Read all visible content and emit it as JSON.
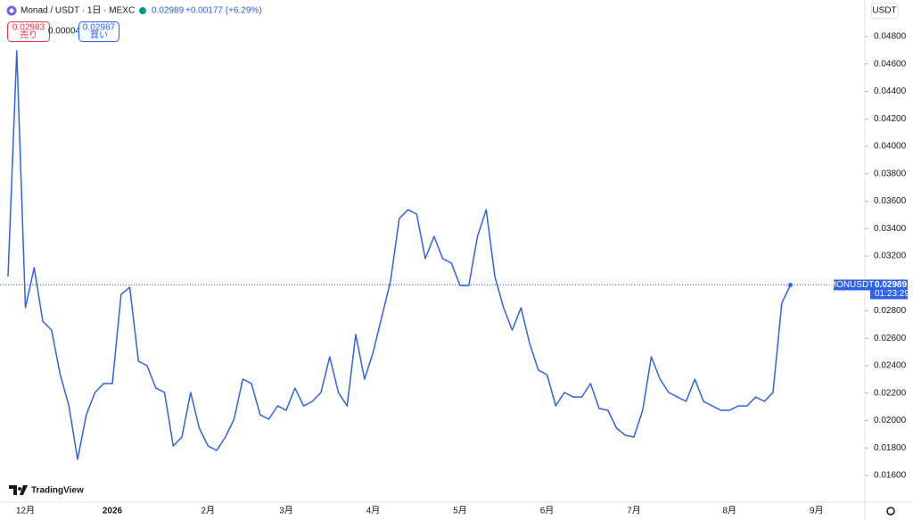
{
  "header": {
    "title": "Monad / USDT · 1日 · MEXC",
    "price": 0.02989,
    "change": "+0.00177 (+6.29%)"
  },
  "order": {
    "sell_price": 0.02983,
    "sell_label": "売り",
    "spread": 4e-05,
    "buy_price": 0.02987,
    "buy_label": "買い"
  },
  "currency": "USDT",
  "brand": "TradingView",
  "chart_data": {
    "type": "line",
    "color": "#2f62e8",
    "categories": [
      null,
      null,
      "12月",
      null,
      null,
      null,
      null,
      null,
      null,
      null,
      null,
      null,
      "2026",
      null,
      null,
      null,
      null,
      null,
      null,
      null,
      null,
      null,
      null,
      "2月",
      null,
      null,
      null,
      null,
      null,
      null,
      null,
      null,
      "3月",
      null,
      null,
      null,
      null,
      null,
      null,
      null,
      null,
      null,
      "4月",
      null,
      null,
      null,
      null,
      null,
      null,
      null,
      null,
      null,
      "5月",
      null,
      null,
      null,
      null,
      null,
      null,
      null,
      null,
      null,
      "6月",
      null,
      null,
      null,
      null,
      null,
      null,
      null,
      null,
      null,
      "7月",
      null,
      null,
      null,
      null,
      null,
      null,
      null,
      null,
      null,
      null,
      "8月",
      null,
      null,
      null,
      null,
      null,
      null,
      null,
      null,
      null,
      "9月"
    ],
    "values": [
      0.0305,
      0.04696,
      0.02823,
      0.03115,
      0.02725,
      0.0266,
      0.02335,
      0.02107,
      0.01717,
      0.02042,
      0.02205,
      0.0227,
      0.0227,
      0.0292,
      0.02972,
      0.02433,
      0.024,
      0.02237,
      0.02205,
      0.01815,
      0.0188,
      0.02205,
      0.01945,
      0.01815,
      0.01782,
      0.0188,
      0.0201,
      0.02302,
      0.0227,
      0.02042,
      0.0201,
      0.02107,
      0.02075,
      0.02237,
      0.02107,
      0.0214,
      0.02205,
      0.02465,
      0.02205,
      0.02107,
      0.02628,
      0.02302,
      0.02498,
      0.02758,
      0.03018,
      0.03473,
      0.03538,
      0.03506,
      0.03181,
      0.03343,
      0.03181,
      0.03148,
      0.02985,
      0.02985,
      0.03343,
      0.03538,
      0.0305,
      0.02823,
      0.0266,
      0.02823,
      0.02563,
      0.02368,
      0.02335,
      0.02107,
      0.02205,
      0.02172,
      0.02172,
      0.0227,
      0.02088,
      0.02075,
      0.01945,
      0.01893,
      0.0188,
      0.02075,
      0.02465,
      0.02302,
      0.02205,
      0.02172,
      0.0214,
      0.02302,
      0.0214,
      0.02107,
      0.02075,
      0.02075,
      0.02107,
      0.02107,
      0.02172,
      0.0214,
      0.02205,
      0.02855,
      0.02989,
      null,
      null,
      null
    ],
    "ylim": [
      0.01405,
      0.05067
    ],
    "yticks": [
      {
        "value": 0.016,
        "label": "0.01600"
      },
      {
        "value": 0.018,
        "label": "0.01800"
      },
      {
        "value": 0.02,
        "label": "0.02000"
      },
      {
        "value": 0.022,
        "label": "0.02200"
      },
      {
        "value": 0.024,
        "label": "0.02400"
      },
      {
        "value": 0.026,
        "label": "0.02600"
      },
      {
        "value": 0.028,
        "label": "0.02800"
      },
      {
        "value": 0.03,
        "label": "0.03000"
      },
      {
        "value": 0.032,
        "label": "0.03200"
      },
      {
        "value": 0.034,
        "label": "0.03400"
      },
      {
        "value": 0.036,
        "label": "0.03600"
      },
      {
        "value": 0.038,
        "label": "0.03800"
      },
      {
        "value": 0.04,
        "label": "0.04000"
      },
      {
        "value": 0.042,
        "label": "0.04200"
      },
      {
        "value": 0.044,
        "label": "0.04400"
      },
      {
        "value": 0.046,
        "label": "0.04600"
      },
      {
        "value": 0.048,
        "label": "0.04800"
      }
    ],
    "price_label": {
      "symbol": "MONUSDT",
      "value": 0.02989,
      "countdown": "01:23:29"
    }
  }
}
